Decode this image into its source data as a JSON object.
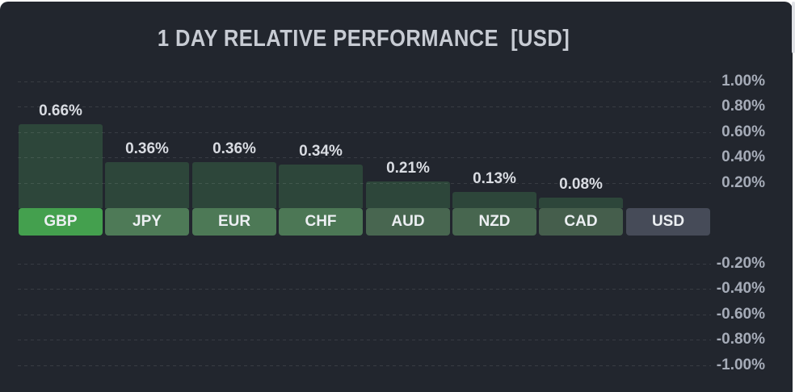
{
  "page": {
    "background": "#ffffff"
  },
  "panel": {
    "background": "#22262e",
    "scrollbar_thumb_color": "#e0e2e7"
  },
  "chart_data": {
    "type": "bar",
    "title": "1 DAY RELATIVE PERFORMANCE  [USD]",
    "title_color": "#c7cbd3",
    "base_currency": "USD",
    "unit": "%",
    "categories": [
      "GBP",
      "JPY",
      "EUR",
      "CHF",
      "AUD",
      "NZD",
      "CAD",
      "USD"
    ],
    "values": [
      0.66,
      0.36,
      0.36,
      0.34,
      0.21,
      0.13,
      0.08,
      0
    ],
    "value_labels": [
      "0.66%",
      "0.36%",
      "0.36%",
      "0.34%",
      "0.21%",
      "0.13%",
      "0.08%",
      ""
    ],
    "pill_colors": [
      "#44a04e",
      "#4e7a57",
      "#4d7956",
      "#4c7755",
      "#486650",
      "#47664f",
      "#455e4c",
      "#464b58"
    ],
    "pill_text_color": "#eceff2",
    "bar_color": "#2d463a",
    "value_label_color": "#d9dce2",
    "xlabel": "",
    "ylabel": "",
    "ylim": [
      -1.0,
      1.0
    ],
    "grid": "dashed-horizontal",
    "legend": "none",
    "yaxis": {
      "side": "right",
      "tick_label_color": "#a6acb8",
      "tick_labels": [
        "1.00%",
        "0.80%",
        "0.60%",
        "0.40%",
        "0.20%",
        "-0.20%",
        "-0.40%",
        "-0.60%",
        "-0.80%",
        "-1.00%"
      ],
      "tick_values": [
        1.0,
        0.8,
        0.6,
        0.4,
        0.2,
        -0.2,
        -0.4,
        -0.6,
        -0.8,
        -1.0
      ]
    }
  }
}
